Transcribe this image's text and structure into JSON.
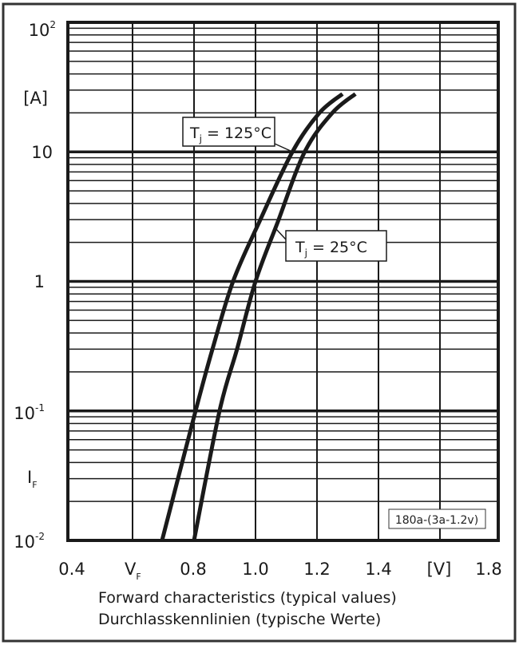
{
  "chart_data": {
    "type": "line",
    "title": "",
    "caption_lines": [
      "Forward characteristics (typical values)",
      "Durchlasskennlinien (typische Werte)"
    ],
    "xlabel": "V",
    "xlabel_sub": "F",
    "xunit": "[V]",
    "ylabel": "I",
    "ylabel_sub": "F",
    "yunit": "[A]",
    "xlim": [
      0.4,
      1.8
    ],
    "ylim": [
      0.01,
      100
    ],
    "yscale": "log",
    "grid": true,
    "x_ticks": [
      "0.4",
      "0.8",
      "1.0",
      "1.2",
      "1.4",
      "1.8"
    ],
    "x_tick_values": [
      0.4,
      0.8,
      1.0,
      1.2,
      1.4,
      1.8
    ],
    "y_ticks": [
      {
        "base": "10",
        "exp": "2",
        "value": 100
      },
      {
        "base": "10",
        "exp": "",
        "value": 10
      },
      {
        "base": "1",
        "exp": "",
        "value": 1
      },
      {
        "base": "10",
        "exp": "-1",
        "value": 0.1
      },
      {
        "base": "10",
        "exp": "-2",
        "value": 0.01
      }
    ],
    "series": [
      {
        "name": "T_j = 125°C",
        "label_main": "T",
        "label_sub": "j",
        "label_rest": " = 125°C",
        "x": [
          0.696,
          0.805,
          0.86,
          0.927,
          1.013,
          1.12,
          1.208,
          1.283
        ],
        "y": [
          0.01,
          0.1,
          0.3,
          1,
          2.9,
          10,
          20,
          28
        ]
      },
      {
        "name": "T_j = 25°C",
        "label_main": "T",
        "label_sub": "j",
        "label_rest": " = 25°C",
        "x": [
          0.8,
          0.883,
          0.94,
          1.0,
          1.073,
          1.16,
          1.25,
          1.325
        ],
        "y": [
          0.01,
          0.1,
          0.3,
          1,
          2.9,
          10,
          20,
          28
        ]
      }
    ],
    "annotation": "180a-(3a-1.2v)",
    "line_color": "#1a1a1a"
  }
}
